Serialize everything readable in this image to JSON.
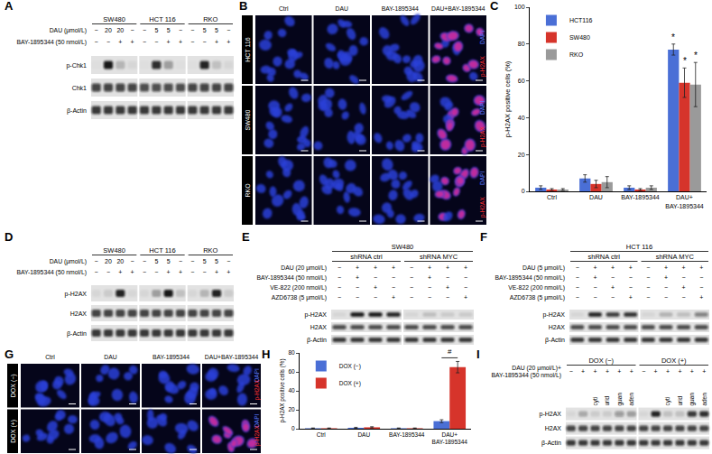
{
  "chart_data": [
    {
      "panel": "C",
      "type": "bar",
      "categories": [
        "Ctrl",
        "DAU",
        "BAY-1895344",
        "DAU+ BAY-1895344"
      ],
      "y_label": "p-H2AX positive cells (%)",
      "ylim": [
        0,
        100
      ],
      "yticks": [
        0,
        20,
        40,
        60,
        80,
        100
      ],
      "grid": false,
      "legend": "upper left",
      "series": [
        {
          "name": "HCT116",
          "color": "#4a6fd6",
          "values": [
            2,
            7,
            2,
            77
          ],
          "errors": [
            1,
            2,
            1,
            3
          ],
          "significance": [
            null,
            null,
            null,
            "*"
          ]
        },
        {
          "name": "SW480",
          "color": "#d6342b",
          "values": [
            1,
            4,
            1,
            59
          ],
          "errors": [
            0.5,
            2,
            0.5,
            8
          ],
          "significance": [
            null,
            null,
            null,
            "*"
          ]
        },
        {
          "name": "RKO",
          "color": "#9a9a9a",
          "values": [
            1,
            5,
            2,
            58
          ],
          "errors": [
            0.5,
            3,
            1,
            12
          ],
          "significance": [
            null,
            null,
            null,
            "*"
          ]
        }
      ]
    },
    {
      "panel": "H",
      "type": "bar",
      "categories": [
        "Ctrl",
        "DAU",
        "BAY-1895344",
        "DAU+ BAY-1895344"
      ],
      "y_label": "p-H2AX positive cells (%)",
      "ylim": [
        0,
        80
      ],
      "yticks": [
        0,
        20,
        40,
        60,
        80
      ],
      "grid": false,
      "legend": "upper left",
      "series": [
        {
          "name": "DOX (−)",
          "color": "#4a6fd6",
          "values": [
            0.5,
            1,
            0.5,
            8
          ],
          "errors": [
            0.3,
            0.5,
            0.3,
            1.5
          ]
        },
        {
          "name": "DOX (+)",
          "color": "#d6342b",
          "values": [
            0.5,
            1.5,
            0.5,
            65
          ],
          "errors": [
            0.3,
            0.6,
            0.3,
            6
          ]
        }
      ],
      "comparison": {
        "category": "DAU+ BAY-1895344",
        "label": "#"
      }
    }
  ],
  "blots": [
    {
      "label": "A",
      "groups": [
        {
          "name": "SW480",
          "lanes": 4
        },
        {
          "name": "HCT 116",
          "lanes": 4
        },
        {
          "name": "RKO",
          "lanes": 4
        }
      ],
      "conditions": [
        {
          "label": "DAU (μmol/L)",
          "values": [
            "−",
            "20",
            "20",
            "−",
            "−",
            "5",
            "5",
            "−",
            "−",
            "5",
            "5",
            "−"
          ]
        },
        {
          "label": "BAY-1895344 (50 nmol/L)",
          "values": [
            "−",
            "−",
            "+",
            "+",
            "−",
            "−",
            "+",
            "+",
            "−",
            "−",
            "+",
            "+"
          ]
        }
      ],
      "bands": [
        {
          "label": "p-Chk1",
          "intensity": [
            0.02,
            0.95,
            0.2,
            0.05,
            0.02,
            0.85,
            0.3,
            0.02,
            0.02,
            0.9,
            0.15,
            0.05
          ]
        },
        {
          "label": "Chk1",
          "intensity": [
            0.75,
            0.75,
            0.75,
            0.75,
            0.7,
            0.7,
            0.7,
            0.7,
            0.75,
            0.75,
            0.75,
            0.75
          ]
        },
        {
          "label": "β-Actin",
          "intensity": [
            0.8,
            0.8,
            0.8,
            0.8,
            0.8,
            0.8,
            0.8,
            0.8,
            0.8,
            0.8,
            0.8,
            0.8
          ]
        }
      ]
    },
    {
      "label": "D",
      "groups": [
        {
          "name": "SW480",
          "lanes": 4
        },
        {
          "name": "HCT 116",
          "lanes": 4
        },
        {
          "name": "RKO",
          "lanes": 4
        }
      ],
      "conditions": [
        {
          "label": "DAU (μmol/L)",
          "values": [
            "−",
            "20",
            "20",
            "−",
            "−",
            "5",
            "5",
            "−",
            "−",
            "5",
            "5",
            "−"
          ]
        },
        {
          "label": "BAY-1895344 (50 nmol/L)",
          "values": [
            "−",
            "−",
            "+",
            "+",
            "−",
            "−",
            "+",
            "+",
            "−",
            "−",
            "+",
            "+"
          ]
        }
      ],
      "bands": [
        {
          "label": "p-H2AX",
          "intensity": [
            0.05,
            0.1,
            0.9,
            0.05,
            0.05,
            0.3,
            0.95,
            0.15,
            0.05,
            0.2,
            0.9,
            0.1
          ]
        },
        {
          "label": "H2AX",
          "intensity": [
            0.75,
            0.75,
            0.75,
            0.75,
            0.75,
            0.75,
            0.75,
            0.75,
            0.75,
            0.75,
            0.75,
            0.75
          ]
        },
        {
          "label": "β-Actin",
          "intensity": [
            0.8,
            0.8,
            0.8,
            0.8,
            0.8,
            0.8,
            0.8,
            0.8,
            0.8,
            0.8,
            0.8,
            0.8
          ]
        }
      ]
    },
    {
      "label": "E",
      "title": "SW480",
      "groups": [
        {
          "name": "shRNA ctrl",
          "lanes": 4
        },
        {
          "name": "shRNA MYC",
          "lanes": 4
        }
      ],
      "conditions": [
        {
          "label": "DAU (20 μmol/L)",
          "values": [
            "−",
            "+",
            "+",
            "+",
            "−",
            "+",
            "+",
            "+"
          ]
        },
        {
          "label": "BAY-1895344 (50 nmol/L)",
          "values": [
            "−",
            "+",
            "−",
            "−",
            "−",
            "+",
            "−",
            "−"
          ]
        },
        {
          "label": "VE-822 (200 nmol/L)",
          "values": [
            "−",
            "−",
            "+",
            "−",
            "−",
            "−",
            "+",
            "−"
          ]
        },
        {
          "label": "AZD6738 (5 μmol/L)",
          "values": [
            "−",
            "−",
            "−",
            "+",
            "−",
            "−",
            "−",
            "+"
          ]
        }
      ],
      "bands": [
        {
          "label": "p-H2AX",
          "intensity": [
            0.05,
            0.9,
            0.9,
            0.85,
            0.05,
            0.15,
            0.1,
            0.1
          ]
        },
        {
          "label": "H2AX",
          "intensity": [
            0.7,
            0.7,
            0.7,
            0.7,
            0.7,
            0.7,
            0.7,
            0.7
          ]
        },
        {
          "label": "β-Actin",
          "intensity": [
            0.8,
            0.8,
            0.8,
            0.8,
            0.8,
            0.8,
            0.8,
            0.8
          ]
        }
      ]
    },
    {
      "label": "F",
      "title": "HCT 116",
      "groups": [
        {
          "name": "shRNA ctrl",
          "lanes": 4
        },
        {
          "name": "shRNA MYC",
          "lanes": 4
        }
      ],
      "conditions": [
        {
          "label": "DAU (5 μmol/L)",
          "values": [
            "−",
            "+",
            "+",
            "+",
            "−",
            "+",
            "+",
            "+"
          ]
        },
        {
          "label": "BAY-1895344 (50 nmol/L)",
          "values": [
            "−",
            "+",
            "−",
            "−",
            "−",
            "+",
            "−",
            "−"
          ]
        },
        {
          "label": "VE-822 (200 nmol/L)",
          "values": [
            "−",
            "−",
            "+",
            "−",
            "−",
            "−",
            "+",
            "−"
          ]
        },
        {
          "label": "AZD6738 (5 μmol/L)",
          "values": [
            "−",
            "−",
            "−",
            "+",
            "−",
            "−",
            "−",
            "+"
          ]
        }
      ],
      "bands": [
        {
          "label": "p-H2AX",
          "intensity": [
            0.05,
            0.85,
            0.75,
            0.8,
            0.05,
            0.2,
            0.15,
            0.45
          ]
        },
        {
          "label": "H2AX",
          "intensity": [
            0.7,
            0.7,
            0.7,
            0.7,
            0.7,
            0.7,
            0.7,
            0.7
          ]
        },
        {
          "label": "β-Actin",
          "intensity": [
            0.8,
            0.8,
            0.8,
            0.8,
            0.8,
            0.8,
            0.8,
            0.8
          ]
        }
      ]
    },
    {
      "label": "I",
      "groups": [
        {
          "name": "DOX (−)",
          "lanes": 6
        },
        {
          "name": "DOX (+)",
          "lanes": 6
        }
      ],
      "conditions": [
        {
          "label": [
            "DAU (20 μmol/L)+",
            "BAY-1895344 (50 nmol/L)"
          ],
          "values": [
            "−",
            "+",
            "+",
            "+",
            "+",
            "+",
            "−",
            "+",
            "+",
            "+",
            "+",
            "+"
          ]
        }
      ],
      "lane_labels": [
        null,
        null,
        "cyti",
        "urid",
        "guan",
        "aden",
        null,
        null,
        "cyti",
        "urid",
        "guan",
        "aden"
      ],
      "bands": [
        {
          "label": "p-H2AX",
          "intensity": [
            0.05,
            0.25,
            0.1,
            0.1,
            0.35,
            0.3,
            0.05,
            0.9,
            0.15,
            0.15,
            0.8,
            0.85
          ]
        },
        {
          "label": "H2AX",
          "intensity": [
            0.75,
            0.75,
            0.75,
            0.75,
            0.75,
            0.75,
            0.75,
            0.75,
            0.75,
            0.75,
            0.75,
            0.75
          ]
        },
        {
          "label": "β-Actin",
          "intensity": [
            0.8,
            0.8,
            0.8,
            0.8,
            0.8,
            0.8,
            0.8,
            0.8,
            0.8,
            0.8,
            0.8,
            0.8
          ]
        }
      ]
    }
  ],
  "micrographs": [
    {
      "label": "B",
      "columns": [
        "Ctrl",
        "DAU",
        "BAY-1895344",
        "DAU+BAY-1895344"
      ],
      "rows": [
        "HCT 116",
        "SW480",
        "RKO"
      ],
      "positive": [
        [
          false,
          false,
          false,
          true
        ],
        [
          false,
          false,
          false,
          true
        ],
        [
          false,
          false,
          false,
          true
        ]
      ],
      "channels": [
        "DAPI",
        "p-H2AX"
      ]
    },
    {
      "label": "G",
      "columns": [
        "Ctrl",
        "DAU",
        "BAY-1895344",
        "DAU+BAY-1895344"
      ],
      "rows": [
        "DOX (−)",
        "DOX (+)"
      ],
      "positive": [
        [
          false,
          false,
          false,
          false
        ],
        [
          false,
          false,
          false,
          true
        ]
      ],
      "channels": [
        "DAPI",
        "p-H2AX"
      ]
    }
  ]
}
